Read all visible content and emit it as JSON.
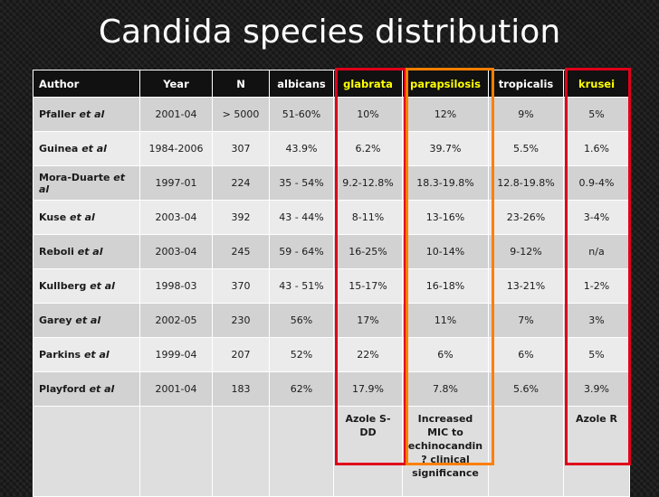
{
  "slide": {
    "title": "Candida species distribution"
  },
  "table": {
    "headers": [
      "Author",
      "Year",
      "N",
      "albicans",
      "glabrata",
      "parapsilosis",
      "tropicalis",
      "krusei"
    ],
    "rows": [
      {
        "author": "Pfaller",
        "suffix": "et al",
        "cells": [
          "2001-04",
          "> 5000",
          "51-60%",
          "10%",
          "12%",
          "9%",
          "5%"
        ]
      },
      {
        "author": "Guinea",
        "suffix": "et al",
        "cells": [
          "1984-2006",
          "307",
          "43.9%",
          "6.2%",
          "39.7%",
          "5.5%",
          "1.6%"
        ]
      },
      {
        "author": "Mora-Duarte",
        "suffix": "et al",
        "cells": [
          "1997-01",
          "224",
          "35 - 54%",
          "9.2-12.8%",
          "18.3-19.8%",
          "12.8-19.8%",
          "0.9-4%"
        ]
      },
      {
        "author": "Kuse",
        "suffix": "et al",
        "cells": [
          "2003-04",
          "392",
          "43 - 44%",
          "8-11%",
          "13-16%",
          "23-26%",
          "3-4%"
        ]
      },
      {
        "author": "Reboli",
        "suffix": "et al",
        "cells": [
          "2003-04",
          "245",
          "59 - 64%",
          "16-25%",
          "10-14%",
          "9-12%",
          "n/a"
        ]
      },
      {
        "author": "Kullberg",
        "suffix": "et al",
        "cells": [
          "1998-03",
          "370",
          "43 - 51%",
          "15-17%",
          "16-18%",
          "13-21%",
          "1-2%"
        ]
      },
      {
        "author": "Garey",
        "suffix": "et al",
        "cells": [
          "2002-05",
          "230",
          "56%",
          "17%",
          "11%",
          "7%",
          "3%"
        ]
      },
      {
        "author": "Parkins",
        "suffix": "et al",
        "cells": [
          "1999-04",
          "207",
          "52%",
          "22%",
          "6%",
          "6%",
          "5%"
        ]
      },
      {
        "author": "Playford",
        "suffix": "et al",
        "cells": [
          "2001-04",
          "183",
          "62%",
          "17.9%",
          "7.8%",
          "5.6%",
          "3.9%"
        ]
      }
    ],
    "notes": {
      "glabrata": "Azole S-DD",
      "parapsilosis": "Increased MIC to echinocandin ? clinical significance",
      "krusei": "Azole R"
    }
  },
  "colors": {
    "header_highlight_text": "#ffff00",
    "glabrata_box": "#e0001a",
    "parapsilosis_box": "#ff7f00",
    "krusei_box": "#e0001a"
  }
}
